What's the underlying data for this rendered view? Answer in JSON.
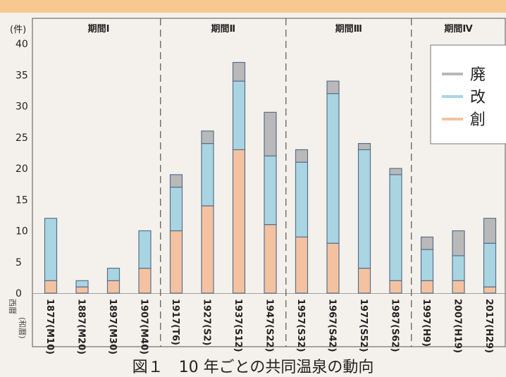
{
  "header_band": {
    "color": "#f7c98f"
  },
  "chart_data": {
    "type": "bar",
    "stacked": true,
    "y_unit": "(件)",
    "ylim": [
      0,
      40
    ],
    "yticks": [
      0,
      5,
      10,
      15,
      20,
      25,
      30,
      35,
      40
    ],
    "x_axis_label_top": "西暦",
    "x_axis_label_bottom": "(和暦)",
    "categories": [
      "1877(M10)",
      "1887(M20)",
      "1897(M30)",
      "1907(M40)",
      "1917(T6)",
      "1927(S2)",
      "1937(S12)",
      "1947(S22)",
      "1957(S32)",
      "1967(S42)",
      "1977(S52)",
      "1987(S62)",
      "1997(H9)",
      "2007(H19)",
      "2017(H29)"
    ],
    "series": [
      {
        "name": "創",
        "color": "#f4c2a1",
        "values": [
          2,
          1,
          2,
          4,
          10,
          14,
          23,
          11,
          9,
          8,
          4,
          2,
          2,
          2,
          1
        ]
      },
      {
        "name": "改",
        "color": "#a9d5e3",
        "values": [
          10,
          1,
          2,
          6,
          7,
          10,
          11,
          11,
          12,
          24,
          19,
          17,
          5,
          4,
          7
        ]
      },
      {
        "name": "廃",
        "color": "#b9b9b9",
        "values": [
          0,
          0,
          0,
          0,
          2,
          2,
          3,
          7,
          2,
          2,
          1,
          1,
          2,
          4,
          4
        ]
      }
    ],
    "periods": [
      {
        "label": "期間Ⅰ",
        "start": 0,
        "end": 3
      },
      {
        "label": "期間Ⅱ",
        "start": 4,
        "end": 7
      },
      {
        "label": "期間Ⅲ",
        "start": 8,
        "end": 11
      },
      {
        "label": "期間Ⅳ",
        "start": 12,
        "end": 14
      }
    ],
    "legend_position": "top-right",
    "grid": false
  },
  "caption": "図１　10 年ごとの共同温泉の動向"
}
